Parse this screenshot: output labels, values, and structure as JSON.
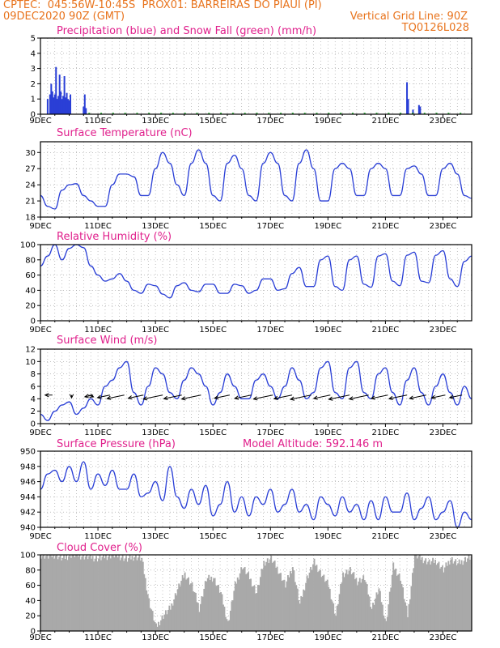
{
  "header": {
    "left_line1": "CPTEC:  045:56W-10:45S  PROX01: BARREIRAS DO PIAUI (PI)",
    "left_line2": "09DEC2020 90Z (GMT)",
    "right_line2": "Vertical Grid Line: 90Z",
    "right_line3": "TQ0126L028"
  },
  "colors": {
    "header": "#e8731c",
    "title": "#e0208c",
    "series": "#2a3fd6",
    "snow": "#1fae2a",
    "cloud": "#a9a9a9"
  },
  "x_axis": {
    "tick_labels": [
      "9DEC",
      "11DEC",
      "13DEC",
      "15DEC",
      "17DEC",
      "19DEC",
      "21DEC",
      "23DEC"
    ]
  },
  "chart_data": [
    {
      "id": "precip",
      "type": "bar",
      "title": "Precipitation (blue) and Snow Fall (green) (mm/h)",
      "ylim": [
        0,
        5
      ],
      "yticks": [
        "0",
        "1",
        "2",
        "3",
        "4",
        "5"
      ],
      "x_hours_start": 0,
      "x_hours_end": 360,
      "series": [
        {
          "name": "Precipitation",
          "points": [
            [
              6,
              1.0
            ],
            [
              8,
              1.3
            ],
            [
              9,
              2.0
            ],
            [
              10,
              1.5
            ],
            [
              11,
              1.1
            ],
            [
              12,
              1.3
            ],
            [
              13,
              3.1
            ],
            [
              14,
              1.0
            ],
            [
              15,
              1.2
            ],
            [
              16,
              2.6
            ],
            [
              17,
              1.5
            ],
            [
              18,
              1.0
            ],
            [
              19,
              1.2
            ],
            [
              20,
              2.5
            ],
            [
              21,
              1.1
            ],
            [
              22,
              1.4
            ],
            [
              23,
              1.0
            ],
            [
              24,
              0.9
            ],
            [
              25,
              1.3
            ],
            [
              36,
              0.5
            ],
            [
              37,
              1.3
            ],
            [
              38,
              0.4
            ],
            [
              306,
              2.1
            ],
            [
              307,
              1.0
            ],
            [
              311,
              0.3
            ],
            [
              316,
              0.6
            ],
            [
              317,
              0.5
            ]
          ]
        },
        {
          "name": "Snow Fall",
          "points": []
        }
      ]
    },
    {
      "id": "temp",
      "type": "line",
      "title": "Surface Temperature (nC)",
      "ylim": [
        18,
        32
      ],
      "yticks": [
        "18",
        "21",
        "24",
        "27",
        "30"
      ],
      "x_hours": [
        0,
        6,
        12,
        18,
        24,
        30,
        36,
        42,
        48,
        54,
        60,
        66,
        72,
        78,
        84,
        90,
        96,
        102,
        108,
        114,
        120,
        126,
        132,
        138,
        144,
        150,
        156,
        162,
        168,
        174,
        180,
        186,
        192,
        198,
        204,
        210,
        216,
        222,
        228,
        234,
        240,
        246,
        252,
        258,
        264,
        270,
        276,
        282,
        288,
        294,
        300,
        306,
        312,
        318,
        324,
        330,
        336,
        342,
        348,
        354,
        360
      ],
      "values": [
        22,
        20,
        19.5,
        23,
        24,
        24.2,
        22,
        21,
        20,
        20,
        24,
        26,
        26,
        25.5,
        22,
        22,
        27,
        30,
        28,
        24,
        22,
        28,
        30.5,
        28,
        22,
        21,
        28,
        29.5,
        27,
        22,
        21,
        28,
        30,
        28,
        22,
        21,
        28,
        30.5,
        27,
        21,
        21,
        27,
        28,
        27,
        22,
        22,
        27,
        28,
        27,
        22,
        22,
        27,
        27.5,
        26,
        22,
        22,
        27,
        28,
        26,
        22,
        21.5
      ]
    },
    {
      "id": "rh",
      "type": "line",
      "title": "Relative Humidity (%)",
      "ylim": [
        0,
        100
      ],
      "yticks": [
        "0",
        "20",
        "40",
        "60",
        "80",
        "100"
      ],
      "x_hours": [
        0,
        6,
        12,
        18,
        24,
        30,
        36,
        42,
        48,
        54,
        60,
        66,
        72,
        78,
        84,
        90,
        96,
        102,
        108,
        114,
        120,
        126,
        132,
        138,
        144,
        150,
        156,
        162,
        168,
        174,
        180,
        186,
        192,
        198,
        204,
        210,
        216,
        222,
        228,
        234,
        240,
        246,
        252,
        258,
        264,
        270,
        276,
        282,
        288,
        294,
        300,
        306,
        312,
        318,
        324,
        330,
        336,
        342,
        348,
        354,
        360
      ],
      "values": [
        72,
        85,
        100,
        80,
        95,
        100,
        96,
        72,
        60,
        52,
        55,
        62,
        52,
        40,
        36,
        48,
        46,
        35,
        30,
        46,
        50,
        40,
        38,
        48,
        48,
        36,
        36,
        48,
        46,
        36,
        40,
        55,
        55,
        40,
        42,
        62,
        70,
        45,
        45,
        80,
        85,
        45,
        40,
        80,
        85,
        48,
        44,
        85,
        88,
        52,
        46,
        86,
        90,
        52,
        50,
        86,
        92,
        55,
        45,
        78,
        85
      ]
    },
    {
      "id": "wind",
      "type": "line",
      "title": "Surface Wind (m/s)",
      "ylim": [
        0,
        12
      ],
      "yticks": [
        "0",
        "2",
        "4",
        "6",
        "8",
        "10",
        "12"
      ],
      "x_hours": [
        0,
        6,
        12,
        18,
        24,
        30,
        36,
        42,
        48,
        54,
        60,
        66,
        72,
        78,
        84,
        90,
        96,
        102,
        108,
        114,
        120,
        126,
        132,
        138,
        144,
        150,
        156,
        162,
        168,
        174,
        180,
        186,
        192,
        198,
        204,
        210,
        216,
        222,
        228,
        234,
        240,
        246,
        252,
        258,
        264,
        270,
        276,
        282,
        288,
        294,
        300,
        306,
        312,
        318,
        324,
        330,
        336,
        342,
        348,
        354,
        360
      ],
      "values": [
        1.5,
        0.5,
        2,
        3,
        3.5,
        1.5,
        2.5,
        4,
        3,
        6,
        7,
        9,
        10,
        5,
        3,
        6,
        9,
        8,
        5,
        4,
        7,
        9,
        8,
        6,
        3,
        5,
        8,
        6,
        4,
        4,
        7,
        8,
        6,
        4,
        6,
        9,
        7,
        4,
        5,
        9,
        10,
        5,
        4,
        9,
        10,
        5,
        4,
        8,
        9,
        5,
        3,
        7,
        9,
        5,
        3,
        6,
        8,
        5,
        3,
        6,
        4
      ],
      "arrows": [
        {
          "h": 10,
          "dir": "W",
          "len": 9
        },
        {
          "h": 26,
          "dir": "S",
          "len": 10
        },
        {
          "h": 40,
          "dir": "SE",
          "len": 9
        },
        {
          "h": 44,
          "dir": "SW",
          "len": 12
        },
        {
          "h": 58,
          "dir": "SW",
          "len": 18
        },
        {
          "h": 70,
          "dir": "SW",
          "len": 25
        },
        {
          "h": 86,
          "dir": "SW",
          "len": 22
        },
        {
          "h": 102,
          "dir": "SW",
          "len": 28
        },
        {
          "h": 118,
          "dir": "SW",
          "len": 26
        },
        {
          "h": 134,
          "dir": "SW",
          "len": 28
        },
        {
          "h": 158,
          "dir": "SW",
          "len": 22
        },
        {
          "h": 176,
          "dir": "SW",
          "len": 24
        },
        {
          "h": 194,
          "dir": "SW",
          "len": 28
        },
        {
          "h": 210,
          "dir": "SW",
          "len": 26
        },
        {
          "h": 226,
          "dir": "SW",
          "len": 30
        },
        {
          "h": 242,
          "dir": "SW",
          "len": 24
        },
        {
          "h": 258,
          "dir": "SW",
          "len": 30
        },
        {
          "h": 274,
          "dir": "SW",
          "len": 28
        },
        {
          "h": 290,
          "dir": "SW",
          "len": 24
        },
        {
          "h": 306,
          "dir": "SW",
          "len": 26
        },
        {
          "h": 322,
          "dir": "SW",
          "len": 24
        },
        {
          "h": 338,
          "dir": "SW",
          "len": 20
        },
        {
          "h": 352,
          "dir": "SW",
          "len": 18
        }
      ]
    },
    {
      "id": "pres",
      "type": "line",
      "title": "Surface Pressure (hPa)",
      "subtitle": "Model Altitude: 592.146 m",
      "ylim": [
        940,
        950
      ],
      "yticks": [
        "940",
        "942",
        "944",
        "946",
        "948",
        "950"
      ],
      "x_hours": [
        0,
        6,
        12,
        18,
        24,
        30,
        36,
        42,
        48,
        54,
        60,
        66,
        72,
        78,
        84,
        90,
        96,
        102,
        108,
        114,
        120,
        126,
        132,
        138,
        144,
        150,
        156,
        162,
        168,
        174,
        180,
        186,
        192,
        198,
        204,
        210,
        216,
        222,
        228,
        234,
        240,
        246,
        252,
        258,
        264,
        270,
        276,
        282,
        288,
        294,
        300,
        306,
        312,
        318,
        324,
        330,
        336,
        342,
        348,
        354,
        360
      ],
      "values": [
        945,
        947,
        947.5,
        946,
        948,
        946,
        948.6,
        945,
        947,
        945.5,
        947.5,
        945,
        945,
        947,
        944,
        944.5,
        946,
        943.5,
        948,
        944,
        942.5,
        945,
        943,
        945.5,
        941.5,
        943,
        946,
        942,
        944,
        941.5,
        944,
        943,
        945,
        942,
        943,
        945,
        942,
        943,
        941,
        944,
        943,
        941.5,
        944,
        942,
        943,
        941,
        943.5,
        941,
        944,
        942,
        942,
        944.5,
        941,
        942.5,
        944,
        941,
        942,
        943.5,
        940,
        942,
        941
      ]
    },
    {
      "id": "cloud",
      "type": "bar",
      "title": "Cloud Cover (%)",
      "ylim": [
        0,
        100
      ],
      "yticks": [
        "0",
        "20",
        "40",
        "60",
        "80",
        "100"
      ],
      "x_hours": [
        0,
        6,
        12,
        18,
        24,
        30,
        36,
        42,
        48,
        54,
        60,
        66,
        72,
        78,
        84,
        90,
        96,
        102,
        108,
        114,
        120,
        126,
        132,
        138,
        144,
        150,
        156,
        162,
        168,
        174,
        180,
        186,
        192,
        198,
        204,
        210,
        216,
        222,
        228,
        234,
        240,
        246,
        252,
        258,
        264,
        270,
        276,
        282,
        288,
        294,
        300,
        306,
        312,
        318,
        324,
        330,
        336,
        342,
        348,
        354,
        360
      ],
      "values": [
        100,
        98,
        100,
        95,
        100,
        100,
        98,
        97,
        95,
        98,
        100,
        98,
        94,
        98,
        95,
        40,
        5,
        20,
        30,
        55,
        75,
        60,
        30,
        68,
        70,
        50,
        10,
        60,
        85,
        70,
        50,
        90,
        95,
        80,
        60,
        85,
        35,
        70,
        90,
        75,
        60,
        20,
        75,
        80,
        65,
        70,
        30,
        55,
        10,
        85,
        70,
        20,
        100,
        95,
        90,
        92,
        80,
        95,
        88,
        94,
        98
      ]
    }
  ]
}
